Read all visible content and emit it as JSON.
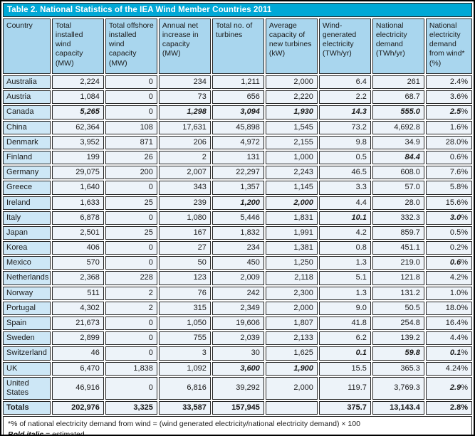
{
  "title_bar": {
    "text": "Table 2. National Statistics of the IEA Wind Member Countries 2011"
  },
  "colors": {
    "title_bar_bg": "#00a8d6",
    "title_text": "#ffffff",
    "header_cell_bg": "#a9d6ee",
    "country_cell_bg": "#cde7f6",
    "value_cell_bg": "#edf3f9",
    "border": "#262626",
    "text": "#1a1a1a"
  },
  "chart_data": {
    "type": "table",
    "title": "Table 2. National Statistics of the IEA Wind Member Countries 2011",
    "columns": [
      "Country",
      "Total installed wind capacity (MW)",
      "Total offshore installed wind capacity (MW)",
      "Annual net increase in capacity (MW)",
      "Total no. of turbines",
      "Average capacity of new turbines (kW)",
      "Wind-generated electricity (TWh/yr)",
      "National electricity demand (TWh/yr)",
      "National electricity demand from wind* (%)"
    ],
    "estimated_marker": "bold italic = estimated",
    "rows": [
      {
        "country": "Australia",
        "values": [
          "2,224",
          "0",
          "234",
          "1,211",
          "2,000",
          "6.4",
          "261",
          "2.4%"
        ],
        "bi": []
      },
      {
        "country": "Austria",
        "values": [
          "1,084",
          "0",
          "73",
          "656",
          "2,220",
          "2.2",
          "68.7",
          "3.6%"
        ],
        "bi": []
      },
      {
        "country": "Canada",
        "values": [
          "5,265",
          "0",
          "1,298",
          "3,094",
          "1,930",
          "14.3",
          "555.0",
          "2.5%"
        ],
        "bi": [
          0,
          2,
          3,
          4,
          5,
          6,
          7
        ]
      },
      {
        "country": "China",
        "values": [
          "62,364",
          "108",
          "17,631",
          "45,898",
          "1,545",
          "73.2",
          "4,692.8",
          "1.6%"
        ],
        "bi": []
      },
      {
        "country": "Denmark",
        "values": [
          "3,952",
          "871",
          "206",
          "4,972",
          "2,155",
          "9.8",
          "34.9",
          "28.0%"
        ],
        "bi": []
      },
      {
        "country": "Finland",
        "values": [
          "199",
          "26",
          "2",
          "131",
          "1,000",
          "0.5",
          "84.4",
          "0.6%"
        ],
        "bi": [
          6
        ]
      },
      {
        "country": "Germany",
        "values": [
          "29,075",
          "200",
          "2,007",
          "22,297",
          "2,243",
          "46.5",
          "608.0",
          "7.6%"
        ],
        "bi": []
      },
      {
        "country": "Greece",
        "values": [
          "1,640",
          "0",
          "343",
          "1,357",
          "1,145",
          "3.3",
          "57.0",
          "5.8%"
        ],
        "bi": []
      },
      {
        "country": "Ireland",
        "values": [
          "1,633",
          "25",
          "239",
          "1,200",
          "2,000",
          "4.4",
          "28.0",
          "15.6%"
        ],
        "bi": [
          3,
          4
        ]
      },
      {
        "country": "Italy",
        "values": [
          "6,878",
          "0",
          "1,080",
          "5,446",
          "1,831",
          "10.1",
          "332.3",
          "3.0%"
        ],
        "bi": [
          5,
          7
        ]
      },
      {
        "country": "Japan",
        "values": [
          "2,501",
          "25",
          "167",
          "1,832",
          "1,991",
          "4.2",
          "859.7",
          "0.5%"
        ],
        "bi": []
      },
      {
        "country": "Korea",
        "values": [
          "406",
          "0",
          "27",
          "234",
          "1,381",
          "0.8",
          "451.1",
          "0.2%"
        ],
        "bi": []
      },
      {
        "country": "Mexico",
        "values": [
          "570",
          "0",
          "50",
          "450",
          "1,250",
          "1.3",
          "219.0",
          "0.6%"
        ],
        "bi": [
          7
        ]
      },
      {
        "country": "Netherlands",
        "values": [
          "2,368",
          "228",
          "123",
          "2,009",
          "2,118",
          "5.1",
          "121.8",
          "4.2%"
        ],
        "bi": []
      },
      {
        "country": "Norway",
        "values": [
          "511",
          "2",
          "76",
          "242",
          "2,300",
          "1.3",
          "131.2",
          "1.0%"
        ],
        "bi": []
      },
      {
        "country": "Portugal",
        "values": [
          "4,302",
          "2",
          "315",
          "2,349",
          "2,000",
          "9.0",
          "50.5",
          "18.0%"
        ],
        "bi": []
      },
      {
        "country": "Spain",
        "values": [
          "21,673",
          "0",
          "1,050",
          "19,606",
          "1,807",
          "41.8",
          "254.8",
          "16.4%"
        ],
        "bi": []
      },
      {
        "country": "Sweden",
        "values": [
          "2,899",
          "0",
          "755",
          "2,039",
          "2,133",
          "6.2",
          "139.2",
          "4.4%"
        ],
        "bi": []
      },
      {
        "country": "Switzerland",
        "values": [
          "46",
          "0",
          "3",
          "30",
          "1,625",
          "0.1",
          "59.8",
          "0.1%"
        ],
        "bi": [
          5,
          6,
          7
        ]
      },
      {
        "country": "UK",
        "values": [
          "6,470",
          "1,838",
          "1,092",
          "3,600",
          "1,900",
          "15.5",
          "365.3",
          "4.24%"
        ],
        "bi": [
          3,
          4
        ]
      },
      {
        "country": "United States",
        "values": [
          "46,916",
          "0",
          "6,816",
          "39,292",
          "2,000",
          "119.7",
          "3,769.3",
          "2.9%"
        ],
        "bi": [
          7
        ]
      }
    ],
    "totals_row": {
      "label": "Totals",
      "values": [
        "202,976",
        "3,325",
        "33,587",
        "157,945",
        "",
        "375.7",
        "13,143.4",
        "2.8%"
      ],
      "bi": []
    }
  },
  "footnotes": {
    "line1": "*% of national electricity demand from wind = (wind generated electricity/national electricity demand) × 100",
    "bold_italic_label": "Bold italic",
    "estimated_suffix": " = estimated"
  }
}
